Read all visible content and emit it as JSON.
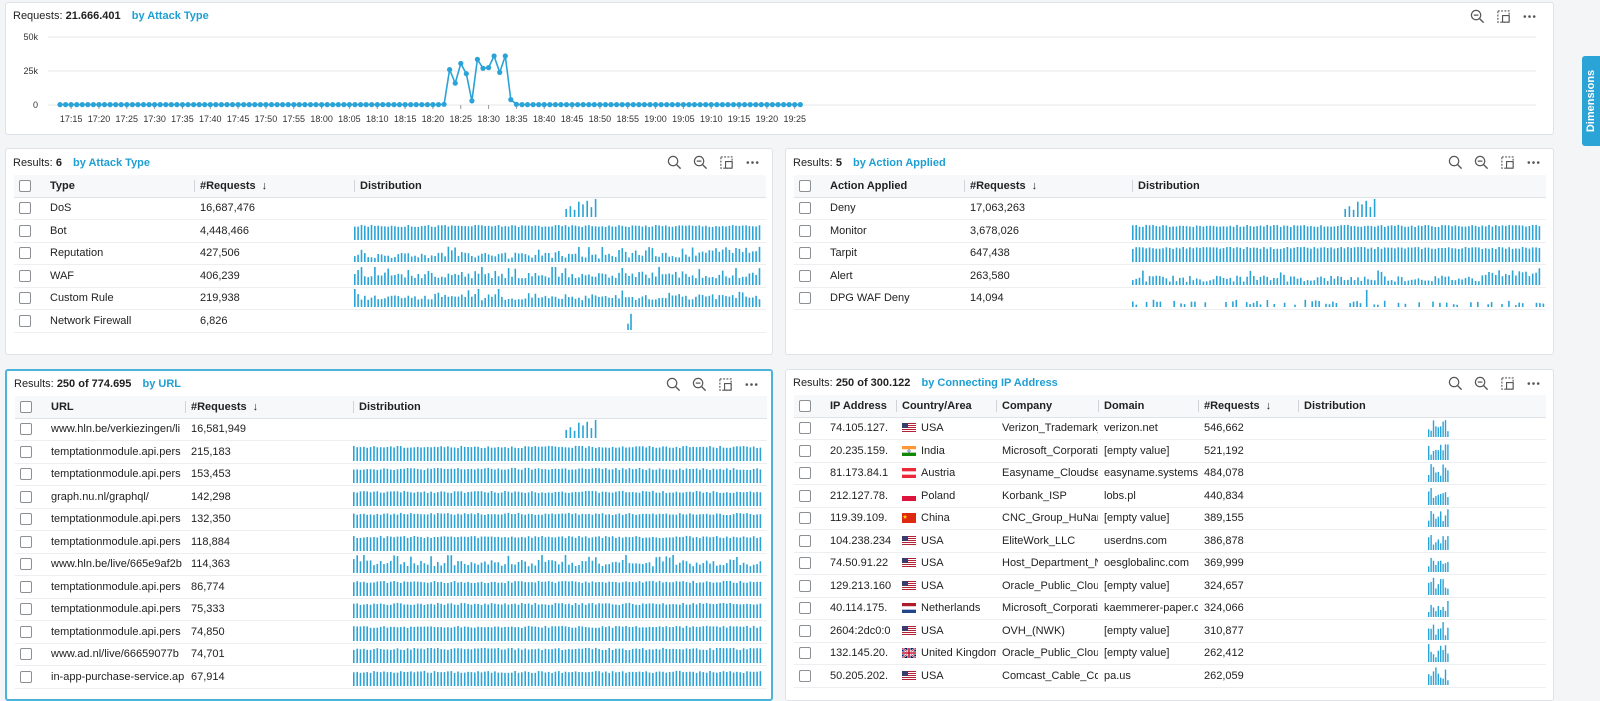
{
  "timeline": {
    "label": "Requests:",
    "total": "21.666.401",
    "by": "by Attack Type",
    "y_ticks": [
      "50k",
      "25k",
      "0"
    ],
    "x_ticks": [
      "17:15",
      "17:20",
      "17:25",
      "17:30",
      "17:35",
      "17:40",
      "17:45",
      "17:50",
      "17:55",
      "18:00",
      "18:05",
      "18:10",
      "18:15",
      "18:20",
      "18:25",
      "18:30",
      "18:35",
      "18:40",
      "18:45",
      "18:50",
      "18:55",
      "19:00",
      "19:05",
      "19:10",
      "19:15",
      "19:20",
      "19:25"
    ]
  },
  "chart_data": {
    "type": "line",
    "x_start": "17:13",
    "x_step_minutes": 1,
    "ylim": [
      0,
      50000
    ],
    "values": [
      300,
      300,
      300,
      300,
      300,
      300,
      300,
      300,
      300,
      300,
      300,
      300,
      300,
      300,
      300,
      300,
      300,
      300,
      300,
      300,
      300,
      300,
      300,
      300,
      300,
      300,
      300,
      300,
      300,
      300,
      300,
      300,
      300,
      300,
      300,
      300,
      300,
      300,
      300,
      300,
      300,
      300,
      300,
      300,
      300,
      300,
      300,
      300,
      300,
      300,
      300,
      300,
      300,
      300,
      300,
      300,
      300,
      300,
      300,
      300,
      300,
      300,
      300,
      300,
      300,
      300,
      300,
      300,
      300,
      500,
      26000,
      16000,
      30500,
      23000,
      3000,
      33500,
      27000,
      27500,
      36000,
      24000,
      36000,
      4000,
      500,
      300,
      300,
      300,
      300,
      300,
      300,
      300,
      300,
      300,
      300,
      300,
      300,
      300,
      300,
      300,
      300,
      300,
      300,
      300,
      300,
      300,
      300,
      300,
      300,
      300,
      300,
      300,
      300,
      300,
      300,
      300,
      300,
      300,
      300,
      300,
      300,
      300,
      300,
      300,
      300,
      300,
      300,
      300,
      300,
      300,
      300,
      300,
      300,
      300,
      300,
      300
    ],
    "color": "#2aa3d6"
  },
  "dimensions_tab": "Dimensions",
  "attack_panel": {
    "label": "Results:",
    "count": "6",
    "by": "by Attack Type",
    "columns": [
      "Type",
      "#Requests",
      "Distribution"
    ],
    "rows": [
      {
        "name": "DoS",
        "requests": "16,687,476",
        "dist": "spike"
      },
      {
        "name": "Bot",
        "requests": "4,448,466",
        "dist": "full-high"
      },
      {
        "name": "Reputation",
        "requests": "427,506",
        "dist": "full-low"
      },
      {
        "name": "WAF",
        "requests": "406,239",
        "dist": "full-mid"
      },
      {
        "name": "Custom Rule",
        "requests": "219,938",
        "dist": "full-mid"
      },
      {
        "name": "Network Firewall",
        "requests": "6,826",
        "dist": "tiny"
      }
    ]
  },
  "action_panel": {
    "label": "Results:",
    "count": "5",
    "by": "by Action Applied",
    "columns": [
      "Action Applied",
      "#Requests",
      "Distribution"
    ],
    "rows": [
      {
        "name": "Deny",
        "requests": "17,063,263",
        "dist": "spike"
      },
      {
        "name": "Monitor",
        "requests": "3,678,026",
        "dist": "full-high"
      },
      {
        "name": "Tarpit",
        "requests": "647,438",
        "dist": "full-high"
      },
      {
        "name": "Alert",
        "requests": "263,580",
        "dist": "full-low"
      },
      {
        "name": "DPG WAF Deny",
        "requests": "14,094",
        "dist": "sparse"
      }
    ]
  },
  "url_panel": {
    "label": "Results:",
    "count": "250 of 774.695",
    "by": "by URL",
    "columns": [
      "URL",
      "#Requests",
      "Distribution"
    ],
    "rows": [
      {
        "name": "www.hln.be/verkiezingen/li",
        "requests": "16,581,949",
        "dist": "spike"
      },
      {
        "name": "temptationmodule.api.pers",
        "requests": "215,183",
        "dist": "full-high"
      },
      {
        "name": "temptationmodule.api.pers",
        "requests": "153,453",
        "dist": "full-high"
      },
      {
        "name": "graph.nu.nl/graphql/",
        "requests": "142,298",
        "dist": "full-high"
      },
      {
        "name": "temptationmodule.api.pers",
        "requests": "132,350",
        "dist": "full-high"
      },
      {
        "name": "temptationmodule.api.pers",
        "requests": "118,884",
        "dist": "full-high"
      },
      {
        "name": "www.hln.be/live/665e9af2b",
        "requests": "114,363",
        "dist": "full-mid"
      },
      {
        "name": "temptationmodule.api.pers",
        "requests": "86,774",
        "dist": "full-high"
      },
      {
        "name": "temptationmodule.api.pers",
        "requests": "75,333",
        "dist": "full-high"
      },
      {
        "name": "temptationmodule.api.pers",
        "requests": "74,850",
        "dist": "full-high"
      },
      {
        "name": "www.ad.nl/live/66659077b",
        "requests": "74,701",
        "dist": "full-high"
      },
      {
        "name": "in-app-purchase-service.ap",
        "requests": "67,914",
        "dist": "full-high"
      }
    ]
  },
  "ip_panel": {
    "label": "Results:",
    "count": "250 of 300.122",
    "by": "by Connecting IP Address",
    "columns": [
      "IP Address",
      "Country/Area",
      "Company",
      "Domain",
      "#Requests",
      "Distribution"
    ],
    "rows": [
      {
        "ip": "74.105.127.",
        "flag": "us",
        "country": "USA",
        "company": "Verizon_Trademark_",
        "domain": "verizon.net",
        "requests": "546,662"
      },
      {
        "ip": "20.235.159.",
        "flag": "in",
        "country": "India",
        "company": "Microsoft_Corporati",
        "domain": "[empty value]",
        "requests": "521,192"
      },
      {
        "ip": "81.173.84.1",
        "flag": "at",
        "country": "Austria",
        "company": "Easyname_Cloudse",
        "domain": "easyname.systems",
        "requests": "484,078"
      },
      {
        "ip": "212.127.78.",
        "flag": "pl",
        "country": "Poland",
        "company": "Korbank_ISP",
        "domain": "lobs.pl",
        "requests": "440,834"
      },
      {
        "ip": "119.39.109.",
        "flag": "cn",
        "country": "China",
        "company": "CNC_Group_HuNan",
        "domain": "[empty value]",
        "requests": "389,155"
      },
      {
        "ip": "104.238.234",
        "flag": "us",
        "country": "USA",
        "company": "EliteWork_LLC",
        "domain": "userdns.com",
        "requests": "386,878"
      },
      {
        "ip": "74.50.91.22",
        "flag": "us",
        "country": "USA",
        "company": "Host_Department_N",
        "domain": "oesglobalinc.com",
        "requests": "369,999"
      },
      {
        "ip": "129.213.160",
        "flag": "us",
        "country": "USA",
        "company": "Oracle_Public_Clou",
        "domain": "[empty value]",
        "requests": "324,657"
      },
      {
        "ip": "40.114.175.",
        "flag": "nl",
        "country": "Netherlands",
        "company": "Microsoft_Corporati",
        "domain": "kaemmerer-paper.c",
        "requests": "324,066"
      },
      {
        "ip": "2604:2dc0:0",
        "flag": "us",
        "country": "USA",
        "company": "OVH_(NWK)",
        "domain": "[empty value]",
        "requests": "310,877"
      },
      {
        "ip": "132.145.20.",
        "flag": "gb",
        "country": "United Kingdom",
        "company": "Oracle_Public_Clou",
        "domain": "[empty value]",
        "requests": "262,412"
      },
      {
        "ip": "50.205.202.",
        "flag": "us",
        "country": "USA",
        "company": "Comcast_Cable_Cor",
        "domain": "pa.us",
        "requests": "262,059"
      }
    ]
  }
}
